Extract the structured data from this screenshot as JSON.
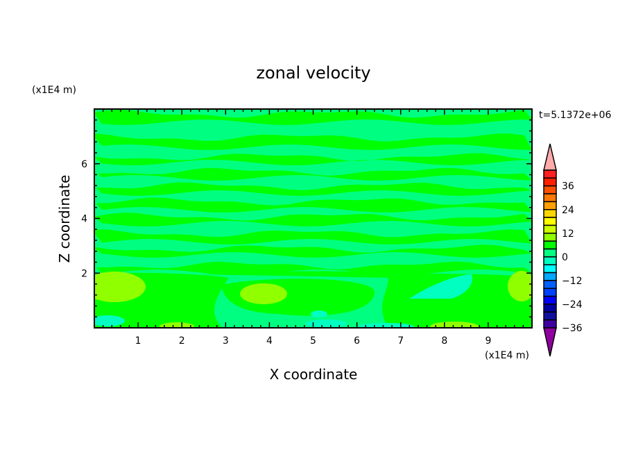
{
  "chart_data": {
    "type": "contour",
    "title": "zonal velocity",
    "xlabel": "X coordinate",
    "ylabel": "Z coordinate",
    "x_unit": "(x1E4 m)",
    "y_unit": "(x1E4 m)",
    "time_label": "t=5.1372e+06",
    "xlim": [
      0,
      10
    ],
    "ylim": [
      0,
      8
    ],
    "x_ticks": [
      "1",
      "2",
      "3",
      "4",
      "5",
      "6",
      "7",
      "8",
      "9"
    ],
    "y_ticks": [
      "2",
      "4",
      "6"
    ],
    "colorbar": {
      "labels": [
        "36",
        "24",
        "12",
        "0",
        "-12",
        "-24",
        "-36"
      ],
      "label_values": [
        36,
        24,
        12,
        0,
        -12,
        -24,
        -36
      ],
      "colors": [
        "#ff2020",
        "#ff2000",
        "#ff5000",
        "#ff7800",
        "#ffa000",
        "#ffd700",
        "#ffff00",
        "#ccff00",
        "#90ff00",
        "#00ff00",
        "#00ff80",
        "#00ffc0",
        "#00ffff",
        "#00a8ff",
        "#0060ff",
        "#0040ff",
        "#0000ff",
        "#0000a0",
        "#1010a0",
        "#4000a0"
      ],
      "over_color": "#ffaaaa",
      "under_color": "#9000a0"
    },
    "dominant_levels": {
      "background": "#00ff80",
      "bands": "#00ff00",
      "positive_blobs": "#90ff00",
      "negative_blobs": "#00ffc0"
    }
  }
}
